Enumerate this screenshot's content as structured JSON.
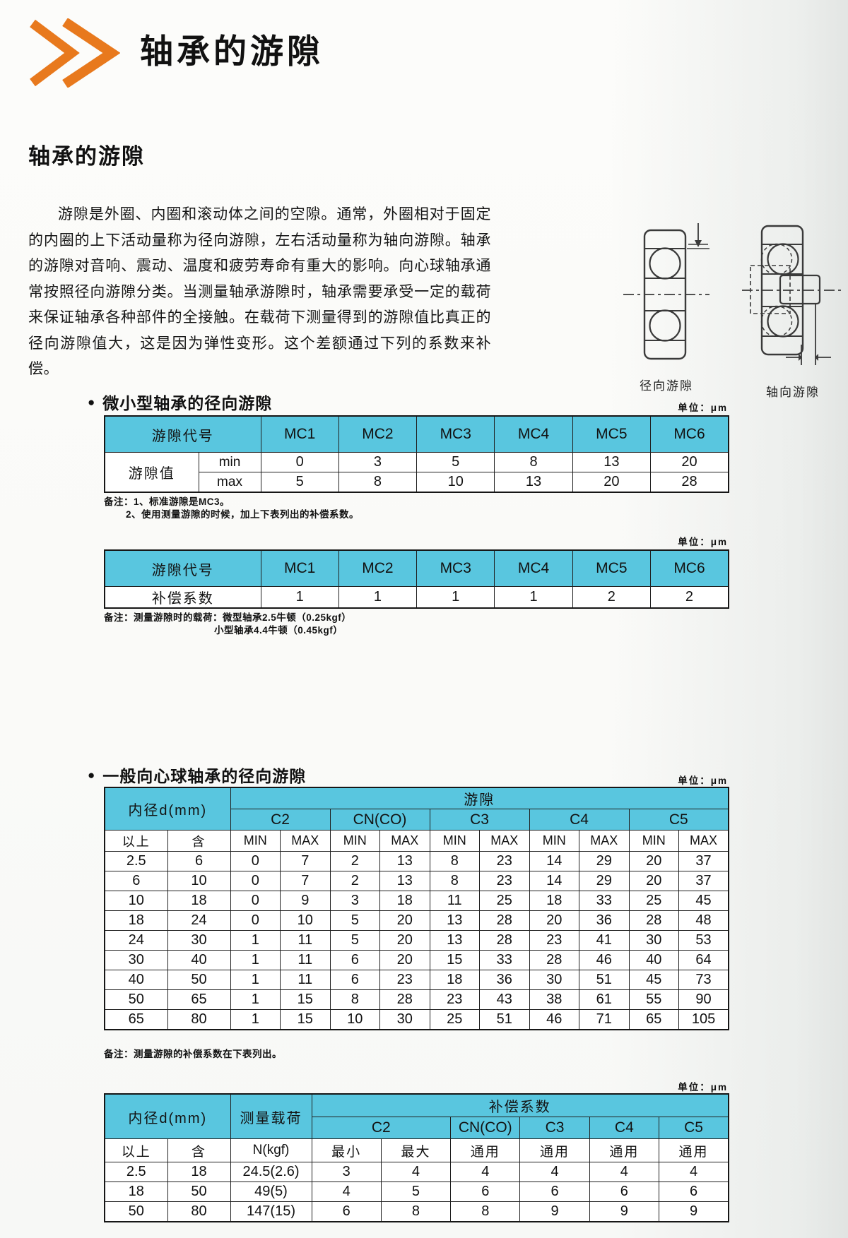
{
  "colors": {
    "accent_orange": "#E8791D",
    "table_header_cyan": "#59C6DF"
  },
  "bullet": "●",
  "unit_label": "单位：μm",
  "header": {
    "title": "轴承的游隙"
  },
  "section": {
    "title": "轴承的游隙",
    "intro": "游隙是外圈、内圈和滚动体之间的空隙。通常，外圈相对于固定的内圈的上下活动量称为径向游隙，左右活动量称为轴向游隙。轴承的游隙对音响、震动、温度和疲劳寿命有重大的影响。向心球轴承通常按照径向游隙分类。当测量轴承游隙时，轴承需要承受一定的载荷来保证轴承各种部件的全接触。在载荷下测量得到的游隙值比真正的径向游隙值大，这是因为弹性变形。这个差额通过下列的系数来补偿。"
  },
  "diagrams": {
    "radial_label": "径向游隙",
    "axial_label": "轴向游隙"
  },
  "table1": {
    "heading": "微小型轴承的径向游隙",
    "code_header": "游隙代号",
    "codes": [
      "MC1",
      "MC2",
      "MC3",
      "MC4",
      "MC5",
      "MC6"
    ],
    "value_label": "游隙值",
    "min_label": "min",
    "max_label": "max",
    "min": [
      "0",
      "3",
      "5",
      "8",
      "13",
      "20"
    ],
    "max": [
      "5",
      "8",
      "10",
      "13",
      "20",
      "28"
    ],
    "note_line1": "备注：1、标准游隙是MC3。",
    "note_line2": "2、使用测量游隙的时候，加上下表列出的补偿系数。"
  },
  "table2": {
    "code_header": "游隙代号",
    "codes": [
      "MC1",
      "MC2",
      "MC3",
      "MC4",
      "MC5",
      "MC6"
    ],
    "row_label": "补偿系数",
    "values": [
      "1",
      "1",
      "1",
      "1",
      "2",
      "2"
    ],
    "note_line1": "备注：测量游隙时的载荷：微型轴承2.5牛顿（0.25kgf）",
    "note_line2": "小型轴承4.4牛顿（0.45kgf）"
  },
  "table3": {
    "heading": "一般向心球轴承的径向游隙",
    "bore_header": "内径d(mm)",
    "clearance_header": "游隙",
    "over_label": "以上",
    "incl_label": "含",
    "min_label": "MIN",
    "max_label": "MAX",
    "classes": [
      "C2",
      "CN(CO)",
      "C3",
      "C4",
      "C5"
    ],
    "rows": [
      {
        "over": "2.5",
        "incl": "6",
        "values": [
          "0",
          "7",
          "2",
          "13",
          "8",
          "23",
          "14",
          "29",
          "20",
          "37"
        ]
      },
      {
        "over": "6",
        "incl": "10",
        "values": [
          "0",
          "7",
          "2",
          "13",
          "8",
          "23",
          "14",
          "29",
          "20",
          "37"
        ]
      },
      {
        "over": "10",
        "incl": "18",
        "values": [
          "0",
          "9",
          "3",
          "18",
          "11",
          "25",
          "18",
          "33",
          "25",
          "45"
        ]
      },
      {
        "over": "18",
        "incl": "24",
        "values": [
          "0",
          "10",
          "5",
          "20",
          "13",
          "28",
          "20",
          "36",
          "28",
          "48"
        ]
      },
      {
        "over": "24",
        "incl": "30",
        "values": [
          "1",
          "11",
          "5",
          "20",
          "13",
          "28",
          "23",
          "41",
          "30",
          "53"
        ]
      },
      {
        "over": "30",
        "incl": "40",
        "values": [
          "1",
          "11",
          "6",
          "20",
          "15",
          "33",
          "28",
          "46",
          "40",
          "64"
        ]
      },
      {
        "over": "40",
        "incl": "50",
        "values": [
          "1",
          "11",
          "6",
          "23",
          "18",
          "36",
          "30",
          "51",
          "45",
          "73"
        ]
      },
      {
        "over": "50",
        "incl": "65",
        "values": [
          "1",
          "15",
          "8",
          "28",
          "23",
          "43",
          "38",
          "61",
          "55",
          "90"
        ]
      },
      {
        "over": "65",
        "incl": "80",
        "values": [
          "1",
          "15",
          "10",
          "30",
          "25",
          "51",
          "46",
          "71",
          "65",
          "105"
        ]
      }
    ],
    "note": "备注：测量游隙的补偿系数在下表列出。"
  },
  "table4": {
    "bore_header": "内径d(mm)",
    "load_header": "测量载荷",
    "comp_header": "补偿系数",
    "over_label": "以上",
    "incl_label": "含",
    "load_unit": "N(kgf)",
    "c2_min_label": "最小",
    "c2_max_label": "最大",
    "common_label": "通用",
    "classes": [
      "C2",
      "CN(CO)",
      "C3",
      "C4",
      "C5"
    ],
    "rows": [
      {
        "over": "2.5",
        "incl": "18",
        "load": "24.5(2.6)",
        "values": [
          "3",
          "4",
          "4",
          "4",
          "4",
          "4"
        ]
      },
      {
        "over": "18",
        "incl": "50",
        "load": "49(5)",
        "values": [
          "4",
          "5",
          "6",
          "6",
          "6",
          "6"
        ]
      },
      {
        "over": "50",
        "incl": "80",
        "load": "147(15)",
        "values": [
          "6",
          "8",
          "8",
          "9",
          "9",
          "9"
        ]
      }
    ]
  }
}
